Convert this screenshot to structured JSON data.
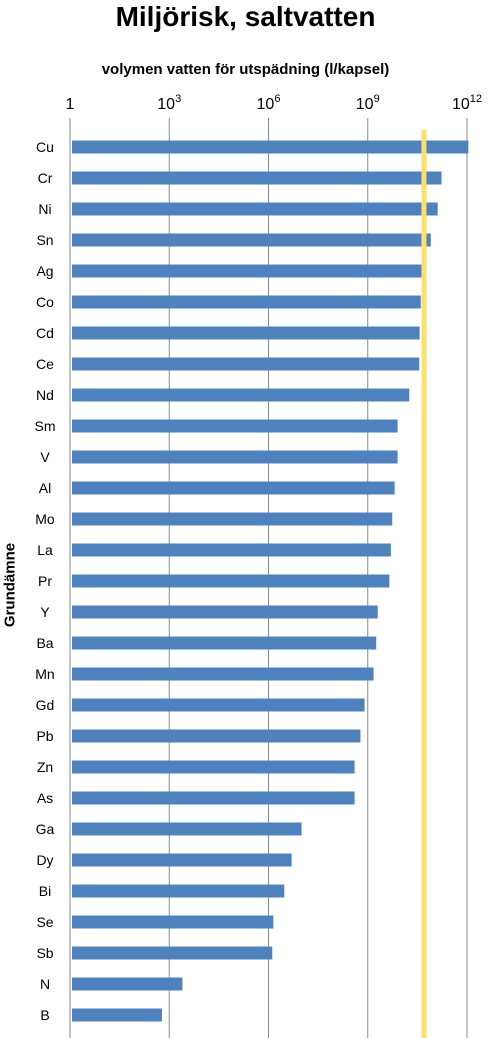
{
  "chart_data": {
    "type": "bar",
    "orientation": "horizontal",
    "title": "Miljörisk, saltvatten",
    "xlabel": "volymen vatten för utspädning  (l/kapsel)",
    "ylabel": "Grundämne",
    "x_scale": "log",
    "xlim": [
      1,
      1000000000000
    ],
    "x_ticks": [
      {
        "value": 1,
        "base": "1",
        "exp": ""
      },
      {
        "value": 1000,
        "base": "10",
        "exp": "3"
      },
      {
        "value": 1000000,
        "base": "10",
        "exp": "6"
      },
      {
        "value": 1000000000,
        "base": "10",
        "exp": "9"
      },
      {
        "value": 1000000000000,
        "base": "10",
        "exp": "12"
      }
    ],
    "grid": "vertical",
    "bar_color": "#4f81bd",
    "reference_line": {
      "value": 50000000000,
      "color": "#ffe066"
    },
    "categories": [
      "Cu",
      "Cr",
      "Ni",
      "Sn",
      "Ag",
      "Co",
      "Cd",
      "Ce",
      "Nd",
      "Sm",
      "V",
      "Al",
      "Mo",
      "La",
      "Pr",
      "Y",
      "Ba",
      "Mn",
      "Gd",
      "Pb",
      "Zn",
      "As",
      "Ga",
      "Dy",
      "Bi",
      "Se",
      "Sb",
      "N",
      "B"
    ],
    "values": [
      1100000000000,
      170000000000,
      130000000000,
      80000000000,
      48000000000,
      40000000000,
      37000000000,
      36000000000,
      18000000000,
      8000000000,
      8000000000,
      6500000000,
      5500000000,
      5000000000,
      4500000000,
      2000000000,
      1800000000,
      1500000000,
      800000000,
      600000000,
      400000000,
      400000000,
      10000000,
      5000000,
      3000000,
      1400000,
      1300000,
      2500,
      600
    ]
  }
}
